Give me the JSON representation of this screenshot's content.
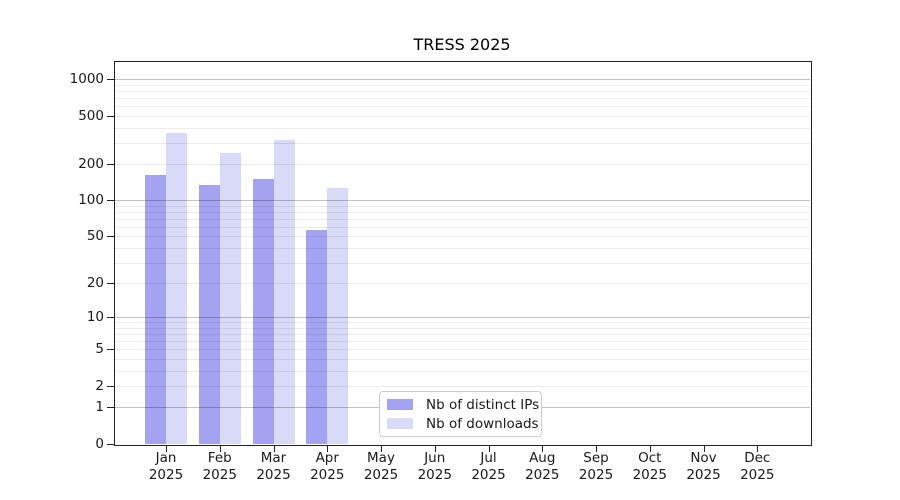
{
  "chart_data": {
    "type": "bar",
    "title": "TRESS 2025",
    "categories": [
      "Jan 2025",
      "Feb 2025",
      "Mar 2025",
      "Apr 2025",
      "May 2025",
      "Jun 2025",
      "Jul 2025",
      "Aug 2025",
      "Sep 2025",
      "Oct 2025",
      "Nov 2025",
      "Dec 2025"
    ],
    "series": [
      {
        "name": "Nb of distinct IPs",
        "color": "#a3a3f1",
        "values": [
          162,
          134,
          151,
          57,
          0,
          0,
          0,
          0,
          0,
          0,
          0,
          0
        ]
      },
      {
        "name": "Nb of downloads",
        "color": "#d9d9f8",
        "values": [
          362,
          249,
          316,
          127,
          0,
          0,
          0,
          0,
          0,
          0,
          0,
          0
        ]
      }
    ],
    "xlabel": "",
    "ylabel": "",
    "y_scale": "log10(value+1)",
    "y_ticks": [
      1000,
      500,
      200,
      100,
      50,
      20,
      10,
      5,
      2,
      1,
      0
    ],
    "major_gridline_values": [
      1,
      10,
      100,
      1000
    ],
    "minor_gridline_decades": [
      1,
      10,
      100
    ],
    "ylim": [
      0,
      1415
    ],
    "grid": true,
    "legend_position": "inside lower center-left"
  },
  "colors": {
    "bar_distinct_ips": "#a3a3f1",
    "bar_downloads": "#d9d9f8",
    "major_grid_rgba": "rgba(0,0,0,0.24)",
    "minor_grid_rgba": "rgba(0,0,0,0.075)",
    "spine": "#222222",
    "text": "#1a1a1a",
    "background": "#ffffff",
    "legend_border": "#cccccc"
  }
}
